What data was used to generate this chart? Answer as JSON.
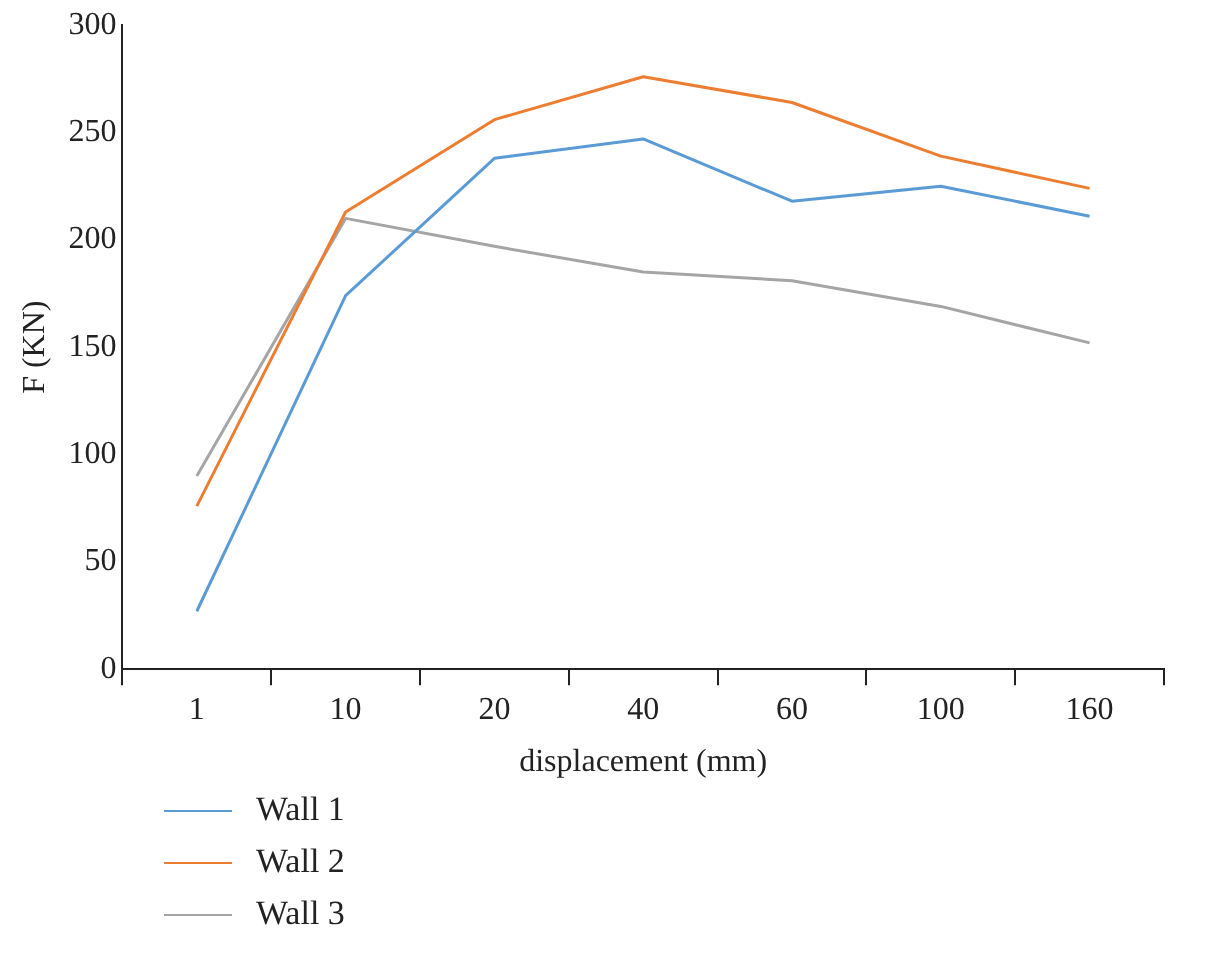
{
  "chart_data": {
    "type": "line",
    "xlabel": "displacement (mm)",
    "ylabel": "F (KN)",
    "categories": [
      "1",
      "10",
      "20",
      "40",
      "60",
      "100",
      "160"
    ],
    "series": [
      {
        "name": "Wall 1",
        "color": "#5b9bd5",
        "values": [
          27,
          174,
          238,
          247,
          218,
          225,
          211
        ]
      },
      {
        "name": "Wall 2",
        "color": "#ed7d31",
        "values": [
          76,
          213,
          256,
          276,
          264,
          239,
          224
        ]
      },
      {
        "name": "Wall 3",
        "color": "#a5a5a5",
        "values": [
          90,
          210,
          197,
          185,
          181,
          169,
          152
        ]
      }
    ],
    "ylim": [
      0,
      300
    ],
    "yticks": [
      0,
      50,
      100,
      150,
      200,
      250,
      300
    ],
    "grid": false,
    "legend": "bottom",
    "marker": "none",
    "line_style": "solid"
  }
}
